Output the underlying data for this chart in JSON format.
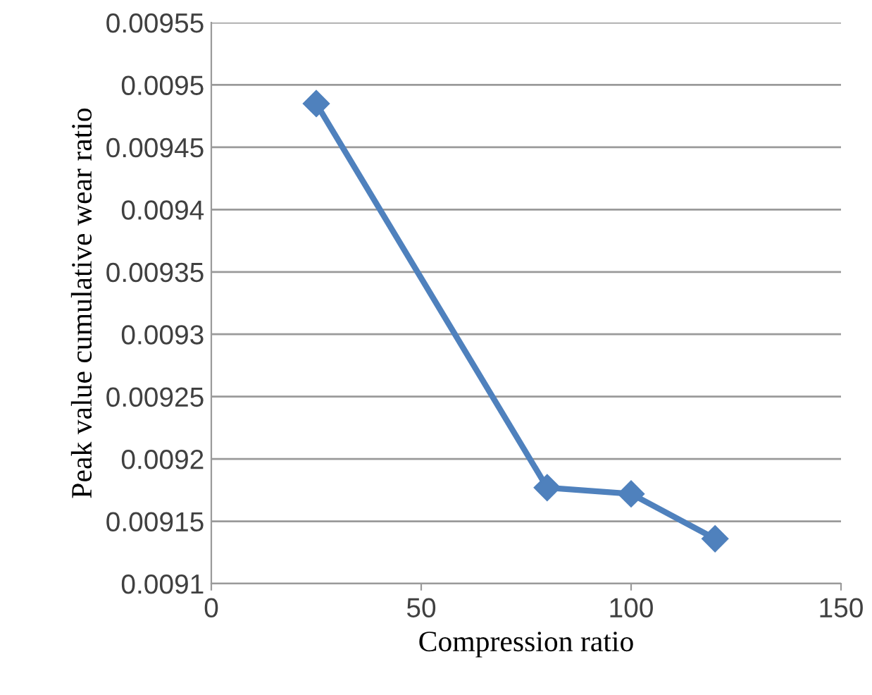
{
  "chart_data": {
    "type": "line",
    "xlabel": "Compression ratio",
    "ylabel": "Peak value cumulative wear ratio",
    "x": [
      25,
      80,
      100,
      120
    ],
    "series": [
      {
        "color": "#4f81bd",
        "values": [
          0.009485,
          0.009177,
          0.009172,
          0.009136
        ]
      }
    ],
    "xlim": [
      0,
      150
    ],
    "xticks": [
      0,
      50,
      100,
      150
    ],
    "ylim": [
      0.0091,
      0.00955
    ],
    "yticks": [
      {
        "value": 0.0091,
        "label": "0.0091"
      },
      {
        "value": 0.00915,
        "label": "0.00915"
      },
      {
        "value": 0.0092,
        "label": "0.0092"
      },
      {
        "value": 0.00925,
        "label": "0.00925"
      },
      {
        "value": 0.0093,
        "label": "0.0093"
      },
      {
        "value": 0.00935,
        "label": "0.00935"
      },
      {
        "value": 0.0094,
        "label": "0.0094"
      },
      {
        "value": 0.00945,
        "label": "0.00945"
      },
      {
        "value": 0.0095,
        "label": "0.0095"
      },
      {
        "value": 0.00955,
        "label": "0.00955"
      }
    ],
    "grid": "y",
    "marker": "diamond",
    "line_style": "solid",
    "legend": false
  }
}
